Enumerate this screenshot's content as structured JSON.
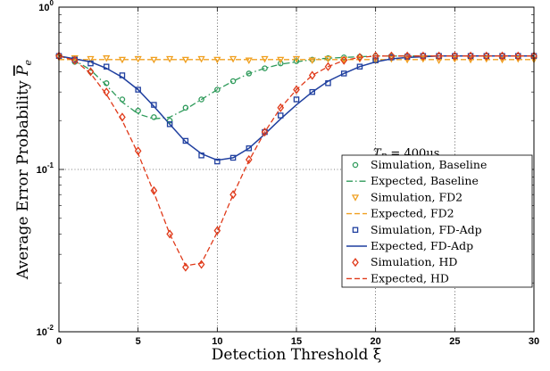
{
  "chart_data": {
    "type": "line",
    "ylog": true,
    "xlim": [
      0,
      30
    ],
    "ylim": [
      0.01,
      1
    ],
    "xticks": [
      0,
      5,
      10,
      15,
      20,
      25,
      30
    ],
    "xtick_labels": [
      "0",
      "5",
      "10",
      "15",
      "20",
      "25",
      "30"
    ],
    "yticks": [
      0.01,
      0.1,
      1
    ],
    "ytick_labels": [
      {
        "base": "10",
        "exp": "-2"
      },
      {
        "base": "10",
        "exp": "-1"
      },
      {
        "base": "10",
        "exp": "0"
      }
    ],
    "xlabel": "Detection Threshold ξ",
    "ylabel": "Average Error Probability",
    "ylabel_symbol": "P",
    "ylabel_subscript": "e",
    "annotation": {
      "lhs": "T",
      "lhs_sub": "B",
      "rhs": " = 400μs"
    },
    "grid": true,
    "legend_position": "lower-right",
    "series": [
      {
        "name": "Simulation, Baseline",
        "kind": "markers",
        "marker": "circle",
        "color": "#2e9a5a",
        "x": [
          0,
          1,
          2,
          3,
          4,
          5,
          6,
          7,
          8,
          9,
          10,
          11,
          12,
          13,
          14,
          15,
          16,
          17,
          18,
          19,
          20,
          21,
          22,
          23,
          24,
          25,
          26,
          27,
          28,
          29,
          30
        ],
        "y": [
          0.5,
          0.46,
          0.4,
          0.34,
          0.27,
          0.23,
          0.21,
          0.2,
          0.24,
          0.27,
          0.31,
          0.35,
          0.39,
          0.42,
          0.45,
          0.465,
          0.475,
          0.485,
          0.49,
          0.495,
          0.5,
          0.5,
          0.5,
          0.5,
          0.5,
          0.5,
          0.5,
          0.5,
          0.5,
          0.5,
          0.5
        ]
      },
      {
        "name": "Expected, Baseline",
        "kind": "line",
        "dash": "dashdot",
        "color": "#2e9a5a",
        "x": [
          0,
          1,
          2,
          3,
          4,
          5,
          6,
          7,
          8,
          9,
          10,
          11,
          12,
          13,
          14,
          15,
          16,
          17,
          18,
          19,
          20,
          21,
          22,
          23,
          24,
          25,
          26,
          27,
          28,
          29,
          30
        ],
        "y": [
          0.5,
          0.47,
          0.41,
          0.33,
          0.26,
          0.22,
          0.205,
          0.21,
          0.235,
          0.27,
          0.31,
          0.35,
          0.39,
          0.42,
          0.445,
          0.46,
          0.475,
          0.485,
          0.49,
          0.495,
          0.5,
          0.5,
          0.5,
          0.5,
          0.5,
          0.5,
          0.5,
          0.5,
          0.5,
          0.5,
          0.5
        ]
      },
      {
        "name": "Simulation, FD2",
        "kind": "markers",
        "marker": "triangle-down",
        "color": "#f0a020",
        "x": [
          0,
          1,
          2,
          3,
          4,
          5,
          6,
          7,
          8,
          9,
          10,
          11,
          12,
          13,
          14,
          15,
          16,
          17,
          18,
          19,
          20,
          21,
          22,
          23,
          24,
          25,
          26,
          27,
          28,
          29,
          30
        ],
        "y": [
          0.49,
          0.485,
          0.48,
          0.485,
          0.475,
          0.48,
          0.475,
          0.48,
          0.475,
          0.48,
          0.475,
          0.48,
          0.47,
          0.48,
          0.475,
          0.48,
          0.47,
          0.48,
          0.475,
          0.48,
          0.47,
          0.48,
          0.475,
          0.48,
          0.47,
          0.48,
          0.475,
          0.48,
          0.475,
          0.48,
          0.475
        ]
      },
      {
        "name": "Expected, FD2",
        "kind": "line",
        "dash": "dashed",
        "color": "#f0a020",
        "x": [
          0,
          30
        ],
        "y": [
          0.475,
          0.475
        ]
      },
      {
        "name": "Simulation, FD-Adp",
        "kind": "markers",
        "marker": "square",
        "color": "#1f3f9f",
        "x": [
          0,
          1,
          2,
          3,
          4,
          5,
          6,
          7,
          8,
          9,
          10,
          11,
          12,
          13,
          14,
          15,
          16,
          17,
          18,
          19,
          20,
          21,
          22,
          23,
          24,
          25,
          26,
          27,
          28,
          29,
          30
        ],
        "y": [
          0.5,
          0.475,
          0.45,
          0.43,
          0.38,
          0.31,
          0.25,
          0.19,
          0.15,
          0.122,
          0.112,
          0.118,
          0.135,
          0.17,
          0.215,
          0.27,
          0.3,
          0.34,
          0.39,
          0.43,
          0.47,
          0.49,
          0.495,
          0.5,
          0.5,
          0.5,
          0.5,
          0.5,
          0.5,
          0.5,
          0.5
        ]
      },
      {
        "name": "Expected, FD-Adp",
        "kind": "line",
        "dash": "solid",
        "color": "#1f3f9f",
        "x": [
          0,
          1,
          2,
          3,
          4,
          5,
          6,
          7,
          8,
          9,
          10,
          11,
          12,
          13,
          14,
          15,
          16,
          17,
          18,
          19,
          20,
          21,
          22,
          23,
          24,
          25,
          26,
          27,
          28,
          29,
          30
        ],
        "y": [
          0.5,
          0.48,
          0.46,
          0.42,
          0.37,
          0.31,
          0.245,
          0.19,
          0.148,
          0.125,
          0.114,
          0.118,
          0.135,
          0.165,
          0.205,
          0.25,
          0.3,
          0.35,
          0.39,
          0.43,
          0.46,
          0.48,
          0.49,
          0.495,
          0.5,
          0.5,
          0.5,
          0.5,
          0.5,
          0.5,
          0.5
        ]
      },
      {
        "name": "Simulation, HD",
        "kind": "markers",
        "marker": "diamond",
        "color": "#e03a1a",
        "x": [
          0,
          1,
          2,
          3,
          4,
          5,
          6,
          7,
          8,
          9,
          10,
          11,
          12,
          13,
          14,
          15,
          16,
          17,
          18,
          19,
          20,
          21,
          22,
          23,
          24,
          25,
          26,
          27,
          28,
          29,
          30
        ],
        "y": [
          0.5,
          0.47,
          0.4,
          0.3,
          0.21,
          0.13,
          0.074,
          0.04,
          0.025,
          0.026,
          0.042,
          0.07,
          0.115,
          0.17,
          0.24,
          0.31,
          0.38,
          0.43,
          0.47,
          0.49,
          0.5,
          0.5,
          0.5,
          0.5,
          0.5,
          0.5,
          0.5,
          0.5,
          0.5,
          0.5,
          0.5
        ]
      },
      {
        "name": "Expected, HD",
        "kind": "line",
        "dash": "dashed",
        "color": "#e03a1a",
        "x": [
          0,
          1,
          2,
          3,
          4,
          5,
          6,
          7,
          8,
          9,
          10,
          11,
          12,
          13,
          14,
          15,
          16,
          17,
          18,
          19,
          20,
          21,
          22,
          23,
          24,
          25,
          26,
          27,
          28,
          29,
          30
        ],
        "y": [
          0.5,
          0.47,
          0.39,
          0.29,
          0.2,
          0.125,
          0.072,
          0.04,
          0.0255,
          0.0265,
          0.041,
          0.07,
          0.113,
          0.17,
          0.24,
          0.31,
          0.38,
          0.43,
          0.47,
          0.49,
          0.5,
          0.5,
          0.5,
          0.5,
          0.5,
          0.5,
          0.5,
          0.5,
          0.5,
          0.5,
          0.5
        ]
      }
    ]
  }
}
